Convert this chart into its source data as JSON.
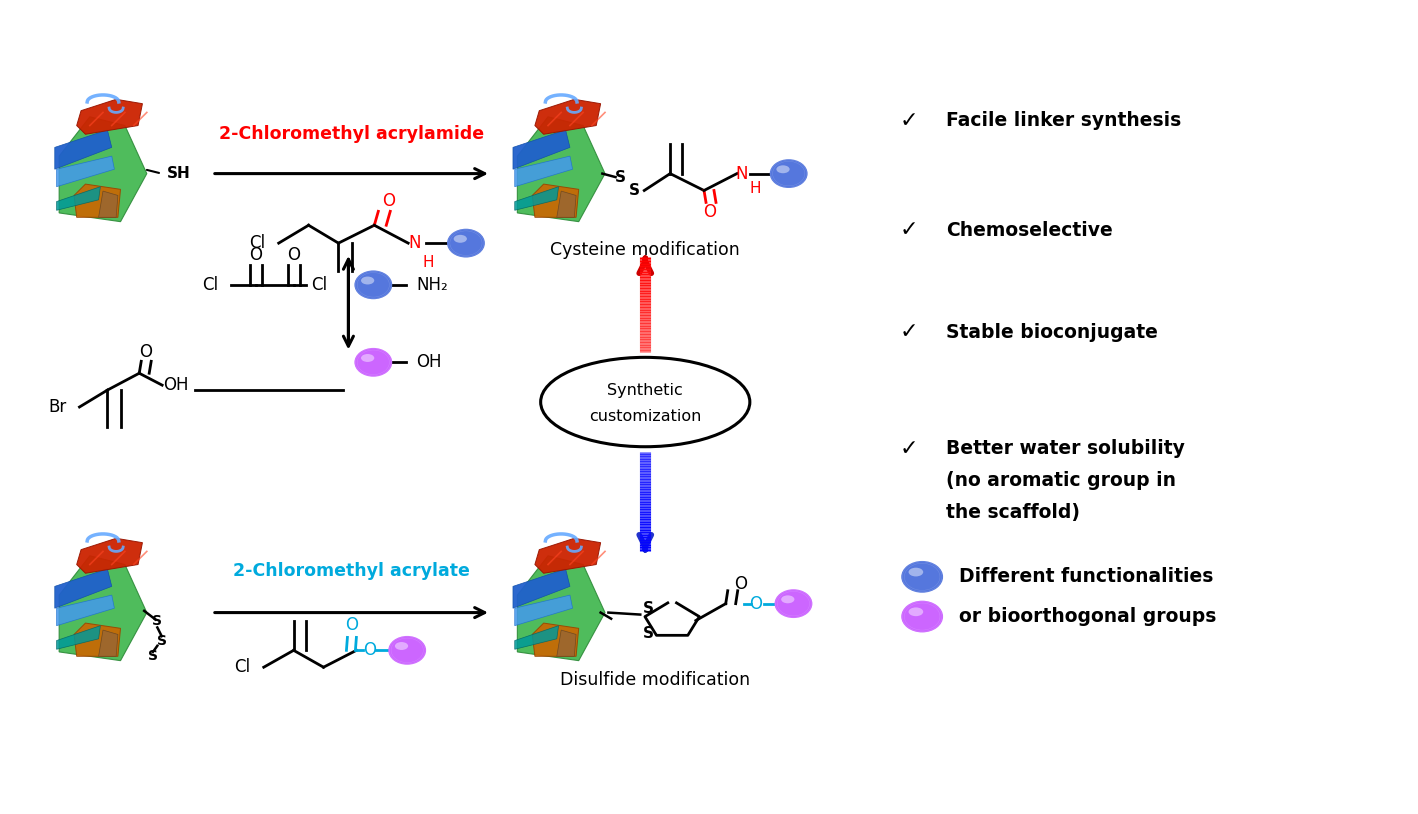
{
  "bg_color": "#ffffff",
  "red_color": "#ff0000",
  "blue_color": "#4169e1",
  "purple_color": "#cc66ff",
  "cyan_color": "#00aadd",
  "black_color": "#000000",
  "right_panel": {
    "checkmarks": [
      "Facile linker synthesis",
      "Chemoselective",
      "Stable bioconjugate",
      "Better water solubility\n(no aromatic group in\nthe scaffold)"
    ],
    "legend_blue_text": "Different functionalities\nor bioorthogonal groups"
  },
  "top_row": {
    "label_above": "2-Chloromethyl acrylamide",
    "label_above_color": "#ff0000",
    "label_result": "Cysteine modification"
  },
  "bottom_row": {
    "label_above": "2-Chloromethyl acrylate",
    "label_above_color": "#00aadd",
    "label_result": "Disulfide modification"
  },
  "center_label": "Synthetic\ncustomization"
}
